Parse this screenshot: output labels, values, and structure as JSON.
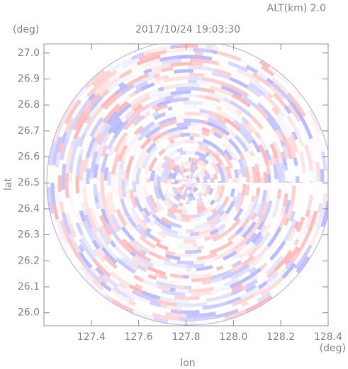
{
  "chart_data": {
    "type": "radar-ppi",
    "title": "2017/10/24 19:03:30",
    "altitude_label": "ALT(km) 2.0",
    "y_unit": "(deg)",
    "x_unit": "(deg)",
    "xlabel": "lon",
    "ylabel": "lat",
    "xlim": [
      127.2,
      128.4
    ],
    "xticks": [
      127.4,
      127.6,
      127.8,
      {
        "value": 128.0,
        "label": "128.0"
      },
      128.2,
      128.4
    ],
    "ylim": [
      25.95,
      27.035
    ],
    "yticks": [
      {
        "value": 26.0,
        "label": "26.0"
      },
      26.1,
      26.2,
      26.3,
      26.4,
      26.5,
      26.6,
      26.7,
      26.8,
      26.9,
      {
        "value": 27.0,
        "label": "27.0"
      }
    ]
  }
}
